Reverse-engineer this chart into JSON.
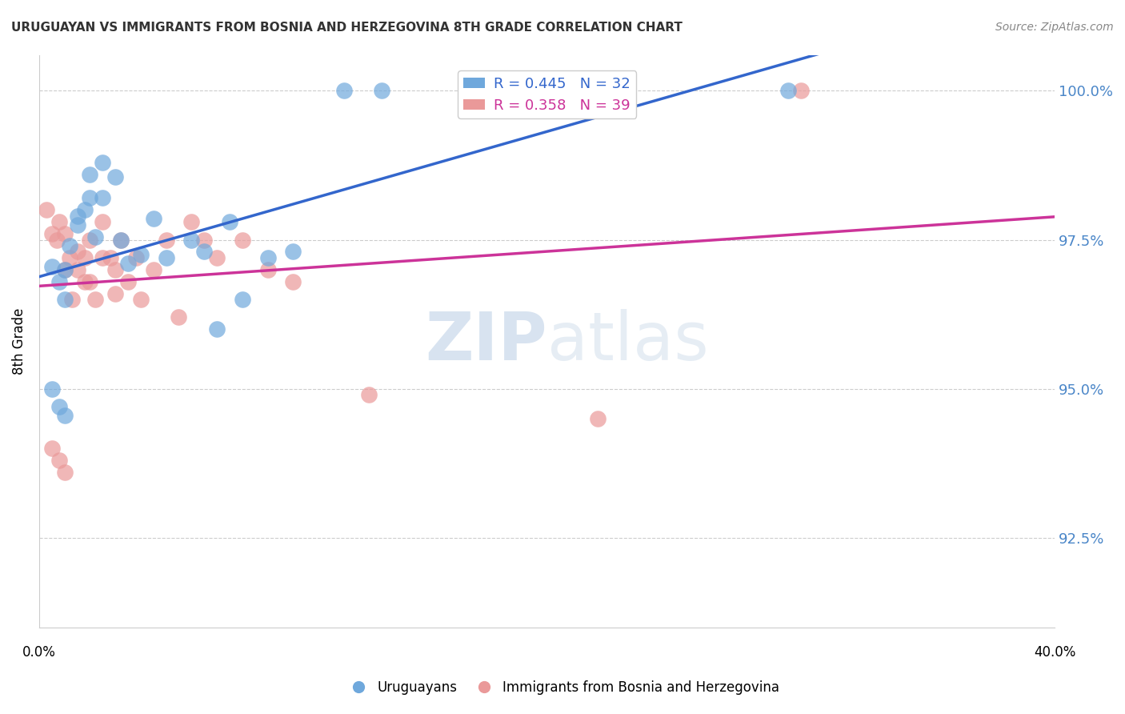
{
  "title": "URUGUAYAN VS IMMIGRANTS FROM BOSNIA AND HERZEGOVINA 8TH GRADE CORRELATION CHART",
  "source": "Source: ZipAtlas.com",
  "ylabel": "8th Grade",
  "ytick_labels": [
    "92.5%",
    "95.0%",
    "97.5%",
    "100.0%"
  ],
  "ytick_values": [
    0.925,
    0.95,
    0.975,
    1.0
  ],
  "xlim": [
    0.0,
    0.4
  ],
  "ylim": [
    0.91,
    1.006
  ],
  "blue_color": "#6fa8dc",
  "pink_color": "#ea9999",
  "blue_line_color": "#3366cc",
  "pink_line_color": "#cc3399",
  "watermark_zip": "ZIP",
  "watermark_atlas": "atlas",
  "ux": [
    0.005,
    0.008,
    0.01,
    0.01,
    0.012,
    0.015,
    0.015,
    0.018,
    0.02,
    0.02,
    0.022,
    0.025,
    0.025,
    0.03,
    0.032,
    0.035,
    0.04,
    0.045,
    0.05,
    0.06,
    0.065,
    0.07,
    0.075,
    0.08,
    0.09,
    0.1,
    0.12,
    0.135,
    0.005,
    0.008,
    0.01,
    0.295
  ],
  "uy": [
    0.9705,
    0.968,
    0.97,
    0.965,
    0.974,
    0.9775,
    0.979,
    0.98,
    0.982,
    0.986,
    0.9755,
    0.982,
    0.988,
    0.9855,
    0.975,
    0.971,
    0.9725,
    0.9785,
    0.972,
    0.975,
    0.973,
    0.96,
    0.978,
    0.965,
    0.972,
    0.973,
    1.0,
    1.0,
    0.95,
    0.947,
    0.9455,
    1.0
  ],
  "bx": [
    0.003,
    0.005,
    0.007,
    0.008,
    0.01,
    0.01,
    0.012,
    0.013,
    0.015,
    0.015,
    0.018,
    0.018,
    0.02,
    0.02,
    0.022,
    0.025,
    0.025,
    0.028,
    0.03,
    0.03,
    0.032,
    0.035,
    0.038,
    0.04,
    0.045,
    0.05,
    0.055,
    0.06,
    0.065,
    0.07,
    0.08,
    0.09,
    0.1,
    0.13,
    0.22,
    0.3,
    0.005,
    0.008,
    0.01
  ],
  "by": [
    0.98,
    0.976,
    0.975,
    0.978,
    0.976,
    0.97,
    0.972,
    0.965,
    0.97,
    0.973,
    0.968,
    0.972,
    0.975,
    0.968,
    0.965,
    0.978,
    0.972,
    0.972,
    0.97,
    0.966,
    0.975,
    0.968,
    0.972,
    0.965,
    0.97,
    0.975,
    0.962,
    0.978,
    0.975,
    0.972,
    0.975,
    0.97,
    0.968,
    0.949,
    0.945,
    1.0,
    0.94,
    0.938,
    0.936
  ]
}
